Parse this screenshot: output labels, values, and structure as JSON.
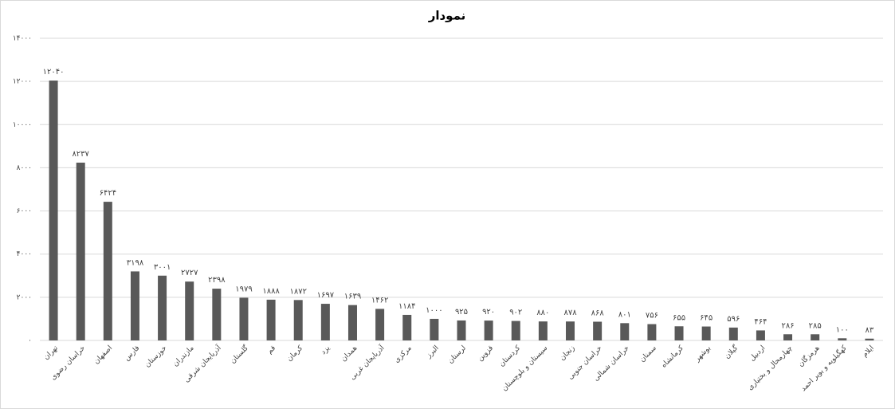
{
  "chart_data": {
    "type": "bar",
    "title": "نمودار",
    "categories": [
      "تهران",
      "خراسان رضوی",
      "اصفهان",
      "فارس",
      "خوزستان",
      "مازندران",
      "آذربایجان شرقی",
      "گلستان",
      "قم",
      "کرمان",
      "یزد",
      "همدان",
      "آذربایجان غربی",
      "مرکزی",
      "البرز",
      "لرستان",
      "قزوین",
      "کردستان",
      "سیستان و بلوچستان",
      "زنجان",
      "خراسان جنوبی",
      "خراسان شمالی",
      "سمنان",
      "کرمانشاه",
      "بوشهر",
      "گیلان",
      "اردبیل",
      "چهارمحال و بختیاری",
      "هرمزگان",
      "کهگیلویه و بویر احمد",
      "ایلام"
    ],
    "values": [
      12040,
      8237,
      6424,
      3198,
      3001,
      2727,
      2398,
      1979,
      1888,
      1872,
      1697,
      1639,
      1462,
      1184,
      1000,
      925,
      920,
      902,
      880,
      878,
      868,
      801,
      756,
      655,
      645,
      596,
      464,
      286,
      285,
      100,
      83
    ],
    "value_labels": [
      "۱۲۰۴۰",
      "۸۲۳۷",
      "۶۴۲۴",
      "۳۱۹۸",
      "۳۰۰۱",
      "۲۷۲۷",
      "۲۳۹۸",
      "۱۹۷۹",
      "۱۸۸۸",
      "۱۸۷۲",
      "۱۶۹۷",
      "۱۶۳۹",
      "۱۴۶۲",
      "۱۱۸۴",
      "۱۰۰۰",
      "۹۲۵",
      "۹۲۰",
      "۹۰۲",
      "۸۸۰",
      "۸۷۸",
      "۸۶۸",
      "۸۰۱",
      "۷۵۶",
      "۶۵۵",
      "۶۴۵",
      "۵۹۶",
      "۴۶۴",
      "۲۸۶",
      "۲۸۵",
      "۱۰۰",
      "۸۳"
    ],
    "color": "#595959",
    "ylim": [
      0,
      14000
    ],
    "yticks": [
      {
        "value": 0,
        "label": "۰"
      },
      {
        "value": 2000,
        "label": "۲۰۰۰"
      },
      {
        "value": 4000,
        "label": "۴۰۰۰"
      },
      {
        "value": 6000,
        "label": "۶۰۰۰"
      },
      {
        "value": 8000,
        "label": "۸۰۰۰"
      },
      {
        "value": 10000,
        "label": "۱۰۰۰۰"
      },
      {
        "value": 12000,
        "label": "۱۲۰۰۰"
      },
      {
        "value": 14000,
        "label": "۱۴۰۰۰"
      }
    ],
    "grid": true
  }
}
